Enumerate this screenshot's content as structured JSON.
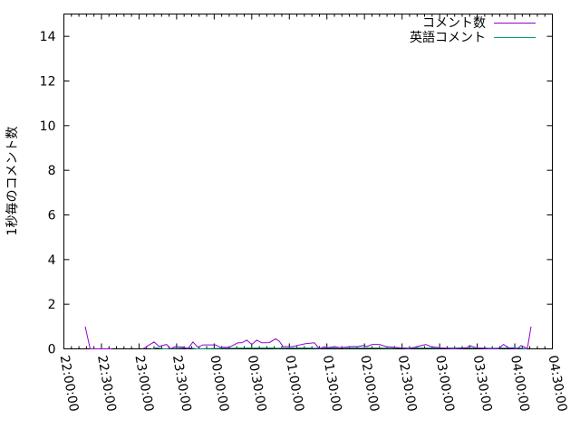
{
  "chart_data": {
    "type": "line",
    "title": "",
    "xlabel": "",
    "ylabel": "1秒毎のコメント数",
    "xlim": [
      "22:00:00",
      "04:30:00"
    ],
    "ylim": [
      0,
      15
    ],
    "x_ticks": [
      "22:00:00",
      "22:30:00",
      "23:00:00",
      "23:30:00",
      "00:00:00",
      "00:30:00",
      "01:00:00",
      "01:30:00",
      "02:00:00",
      "02:30:00",
      "03:00:00",
      "03:30:00",
      "04:00:00",
      "04:30:00"
    ],
    "y_ticks": [
      "0",
      "2",
      "4",
      "6",
      "8",
      "10",
      "12",
      "14"
    ],
    "grid": false,
    "legend_position": "top-right",
    "series": [
      {
        "name": "コメント数",
        "color": "#9400d3",
        "points": [
          [
            "22:17",
            1.0
          ],
          [
            "22:21",
            0.0
          ],
          [
            "22:30",
            0.0
          ],
          [
            "22:38",
            0.0
          ],
          [
            "22:39",
            null
          ],
          [
            "23:03",
            0.0
          ],
          [
            "23:12",
            0.31
          ],
          [
            "23:16",
            0.11
          ],
          [
            "23:22",
            0.2
          ],
          [
            "23:25",
            0.0
          ],
          [
            "23:29",
            0.1
          ],
          [
            "23:35",
            0.08
          ],
          [
            "23:39",
            0.0
          ],
          [
            "23:43",
            0.31
          ],
          [
            "23:47",
            0.07
          ],
          [
            "23:51",
            0.18
          ],
          [
            "00:01",
            0.18
          ],
          [
            "00:05",
            0.07
          ],
          [
            "00:12",
            0.07
          ],
          [
            "00:19",
            0.27
          ],
          [
            "00:22",
            0.27
          ],
          [
            "00:26",
            0.39
          ],
          [
            "00:30",
            0.2
          ],
          [
            "00:34",
            0.39
          ],
          [
            "00:38",
            0.27
          ],
          [
            "00:44",
            0.28
          ],
          [
            "00:49",
            0.45
          ],
          [
            "00:52",
            0.34
          ],
          [
            "00:55",
            0.1
          ],
          [
            "01:03",
            0.1
          ],
          [
            "01:06",
            0.15
          ],
          [
            "01:13",
            0.23
          ],
          [
            "01:20",
            0.27
          ],
          [
            "01:24",
            0.0
          ],
          [
            "01:28",
            0.1
          ],
          [
            "01:30",
            0.05
          ],
          [
            "01:36",
            0.1
          ],
          [
            "01:41",
            0.05
          ],
          [
            "01:48",
            0.1
          ],
          [
            "01:55",
            0.1
          ],
          [
            "01:59",
            0.15
          ],
          [
            "02:02",
            0.1
          ],
          [
            "02:06",
            0.2
          ],
          [
            "02:12",
            0.2
          ],
          [
            "02:17",
            0.1
          ],
          [
            "02:28",
            0.05
          ],
          [
            "02:35",
            0.0
          ],
          [
            "02:42",
            0.1
          ],
          [
            "02:49",
            0.2
          ],
          [
            "02:53",
            0.1
          ],
          [
            "03:00",
            0.05
          ],
          [
            "03:11",
            0.0
          ],
          [
            "03:22",
            0.05
          ],
          [
            "03:24",
            0.15
          ],
          [
            "03:29",
            0.05
          ],
          [
            "03:40",
            0.0
          ],
          [
            "03:47",
            0.0
          ],
          [
            "03:51",
            0.2
          ],
          [
            "03:55",
            0.05
          ],
          [
            "04:02",
            0.0
          ],
          [
            "04:05",
            0.15
          ],
          [
            "04:09",
            0.05
          ],
          [
            "04:10",
            0.0
          ],
          [
            "04:13",
            1.0
          ]
        ]
      },
      {
        "name": "英語コメント",
        "color": "#009e73",
        "points": [
          [
            "23:10",
            0.0
          ],
          [
            "23:14",
            0.05
          ],
          [
            "23:20",
            0.0
          ],
          [
            "23:40",
            0.05
          ],
          [
            "23:46",
            0.0
          ],
          [
            "00:10",
            0.03
          ],
          [
            "00:40",
            0.05
          ],
          [
            "00:50",
            0.03
          ],
          [
            "01:10",
            0.05
          ],
          [
            "01:20",
            0.03
          ],
          [
            "01:40",
            0.05
          ],
          [
            "02:00",
            0.05
          ],
          [
            "02:20",
            0.03
          ],
          [
            "02:40",
            0.05
          ],
          [
            "03:00",
            0.03
          ],
          [
            "03:20",
            0.05
          ],
          [
            "03:40",
            0.03
          ],
          [
            "04:00",
            0.05
          ],
          [
            "04:10",
            0.0
          ]
        ]
      }
    ]
  }
}
